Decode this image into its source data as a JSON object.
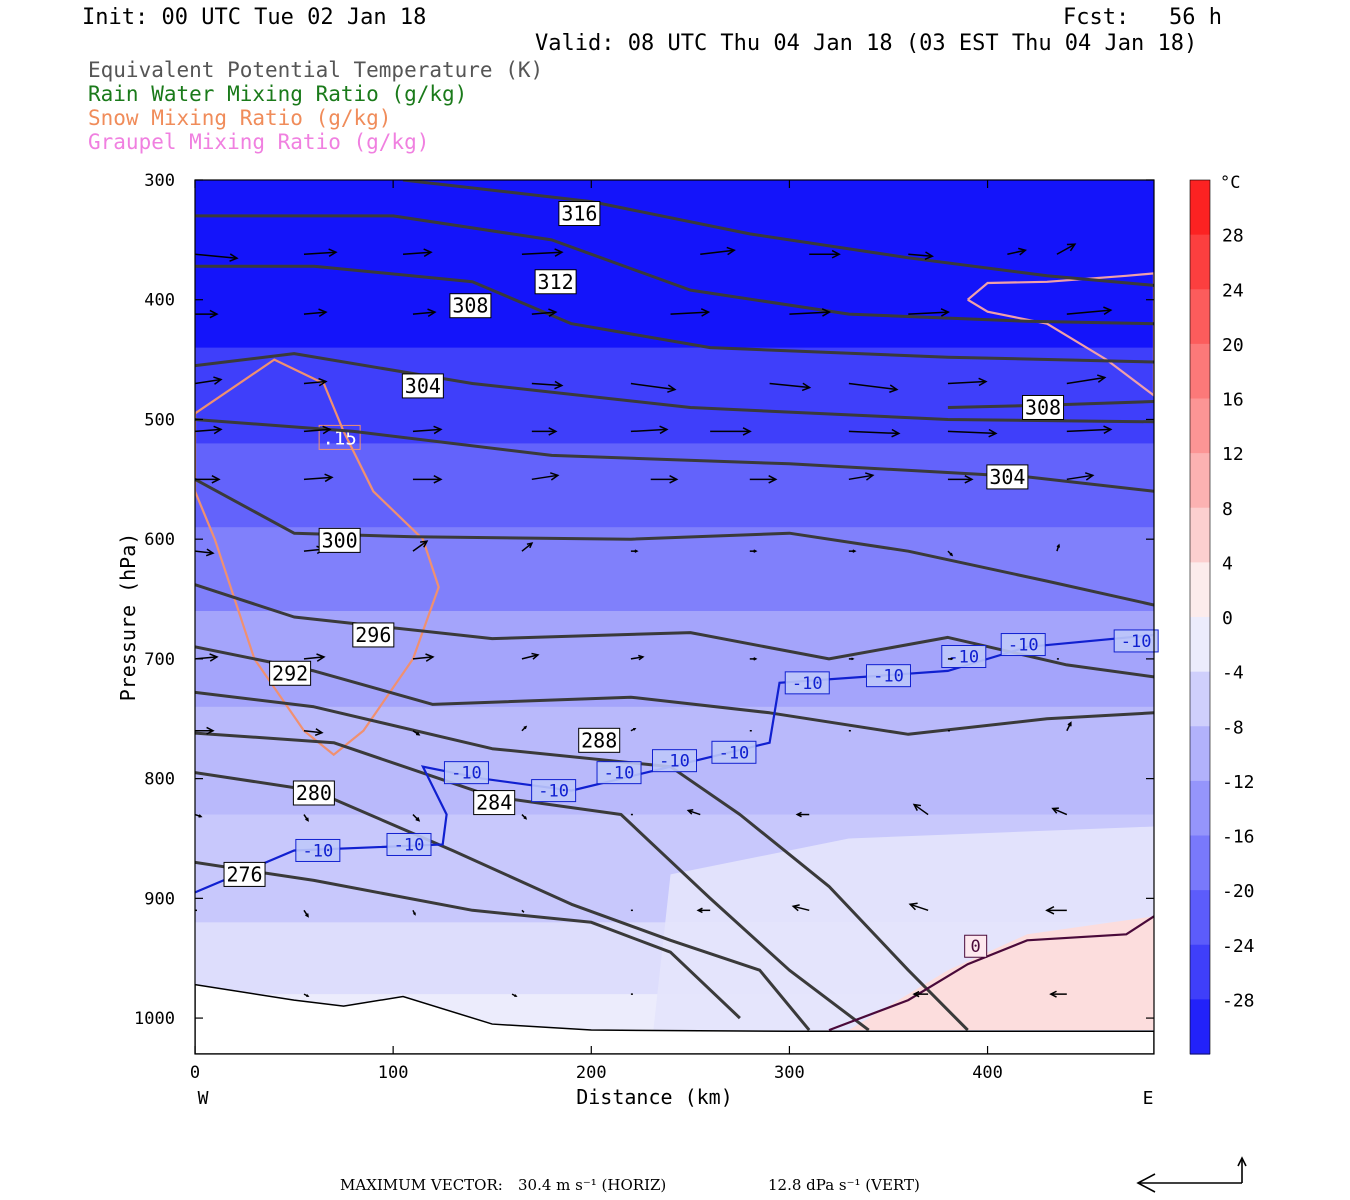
{
  "header": {
    "init": "Init: 00 UTC Tue 02 Jan 18",
    "fcst": "Fcst:   56 h",
    "valid": "Valid: 08 UTC Thu 04 Jan 18 (03 EST Thu 04 Jan 18)"
  },
  "legend": {
    "theta_e": "Equivalent Potential Temperature (K)",
    "rain": "Rain Water Mixing Ratio (g/kg)",
    "snow": "Snow Mixing Ratio (g/kg)",
    "graupel": "Graupel Mixing Ratio (g/kg)"
  },
  "colors": {
    "theta_e": "#555555",
    "rain": "#1a7a1a",
    "snow": "#f08c5a",
    "graupel": "#f080e0",
    "isotherm_cold": "#1020d0",
    "isotherm_zero": "#4a0a3a",
    "snow_contour": "#f09070",
    "snow_contour_upper": "#f0a0a8"
  },
  "footer": {
    "max_vector_label": "MAXIMUM VECTOR:",
    "horiz": "30.4 m s⁻¹ (HORIZ)",
    "vert": "12.8 dPa s⁻¹ (VERT)"
  },
  "chart_data": {
    "type": "heatmap",
    "title": "",
    "xlabel": "Distance (km)",
    "ylabel": "Pressure (hPa)",
    "xlim": [
      0,
      484
    ],
    "ylim": [
      1030,
      300
    ],
    "x_ticks": [
      0,
      100,
      200,
      300,
      400
    ],
    "y_ticks": [
      300,
      400,
      500,
      600,
      700,
      800,
      900,
      1000
    ],
    "x_end_labels": {
      "left": "W",
      "right": "E"
    },
    "colorbar": {
      "unit": "°C",
      "range": [
        -32,
        32
      ],
      "step": 4,
      "tick_labels": [
        28,
        24,
        20,
        16,
        12,
        8,
        4,
        0,
        -4,
        -8,
        -12,
        -16,
        -20,
        -24,
        -28
      ]
    },
    "temperature_field": {
      "description_levels": [
        {
          "p": 300,
          "t": -42
        },
        {
          "p": 400,
          "t": -32
        },
        {
          "p": 480,
          "t": -26
        },
        {
          "p": 560,
          "t": -21
        },
        {
          "p": 620,
          "t": -17
        },
        {
          "p": 700,
          "t": -12
        },
        {
          "p": 780,
          "t": -9
        },
        {
          "p": 880,
          "t": -7
        },
        {
          "p": 960,
          "t": -4
        },
        {
          "p": 1000,
          "t": -2
        }
      ],
      "warm_pocket": {
        "x": [
          330,
          484
        ],
        "p": [
          930,
          1010
        ],
        "t_max": 4
      }
    },
    "theta_e_contours": [
      {
        "value": 316,
        "points": [
          [
            105,
            300
          ],
          [
            200,
            318
          ],
          [
            280,
            345
          ],
          [
            360,
            365
          ],
          [
            430,
            380
          ],
          [
            484,
            388
          ]
        ],
        "label": {
          "x": 194,
          "p": 328
        }
      },
      {
        "value": 312,
        "points": [
          [
            0,
            330
          ],
          [
            100,
            330
          ],
          [
            180,
            350
          ],
          [
            250,
            392
          ],
          [
            330,
            412
          ],
          [
            420,
            418
          ],
          [
            484,
            420
          ]
        ],
        "label": {
          "x": 182,
          "p": 385
        }
      },
      {
        "value": 308,
        "points": [
          [
            0,
            372
          ],
          [
            60,
            372
          ],
          [
            140,
            385
          ],
          [
            190,
            420
          ],
          [
            260,
            440
          ],
          [
            380,
            448
          ],
          [
            484,
            452
          ]
        ],
        "label": {
          "x": 139,
          "p": 405
        }
      },
      {
        "value": 308,
        "points": [
          [
            380,
            490
          ],
          [
            430,
            488
          ],
          [
            484,
            485
          ]
        ],
        "label": {
          "x": 428,
          "p": 490
        }
      },
      {
        "value": 304,
        "points": [
          [
            0,
            455
          ],
          [
            50,
            445
          ],
          [
            140,
            470
          ],
          [
            250,
            490
          ],
          [
            380,
            500
          ],
          [
            484,
            502
          ]
        ],
        "label": {
          "x": 115,
          "p": 472
        }
      },
      {
        "value": 304,
        "points": [
          [
            0,
            500
          ],
          [
            80,
            510
          ],
          [
            180,
            530
          ],
          [
            300,
            537
          ],
          [
            420,
            548
          ],
          [
            484,
            560
          ]
        ],
        "label": {
          "x": 410,
          "p": 548
        }
      },
      {
        "value": 300,
        "points": [
          [
            0,
            550
          ],
          [
            50,
            595
          ],
          [
            110,
            598
          ],
          [
            220,
            600
          ],
          [
            300,
            595
          ],
          [
            360,
            610
          ],
          [
            430,
            635
          ],
          [
            484,
            655
          ]
        ],
        "label": {
          "x": 73,
          "p": 601
        }
      },
      {
        "value": 296,
        "points": [
          [
            0,
            638
          ],
          [
            50,
            665
          ],
          [
            150,
            683
          ],
          [
            250,
            678
          ],
          [
            320,
            700
          ],
          [
            380,
            682
          ],
          [
            440,
            705
          ],
          [
            484,
            715
          ]
        ],
        "label": {
          "x": 90,
          "p": 680
        }
      },
      {
        "value": 292,
        "points": [
          [
            0,
            690
          ],
          [
            60,
            710
          ],
          [
            120,
            738
          ],
          [
            220,
            732
          ],
          [
            290,
            745
          ],
          [
            360,
            763
          ],
          [
            430,
            750
          ],
          [
            484,
            745
          ]
        ],
        "label": {
          "x": 48,
          "p": 712
        }
      },
      {
        "value": 288,
        "points": [
          [
            0,
            728
          ],
          [
            60,
            740
          ],
          [
            150,
            775
          ],
          [
            240,
            790
          ],
          [
            275,
            830
          ],
          [
            320,
            890
          ],
          [
            360,
            960
          ],
          [
            390,
            1010
          ]
        ],
        "label": {
          "x": 204,
          "p": 768
        }
      },
      {
        "value": 284,
        "points": [
          [
            0,
            762
          ],
          [
            70,
            770
          ],
          [
            150,
            815
          ],
          [
            215,
            830
          ],
          [
            260,
            900
          ],
          [
            300,
            960
          ],
          [
            340,
            1010
          ]
        ],
        "label": {
          "x": 151,
          "p": 820
        }
      },
      {
        "value": 280,
        "points": [
          [
            0,
            795
          ],
          [
            60,
            810
          ],
          [
            130,
            860
          ],
          [
            190,
            905
          ],
          [
            240,
            935
          ],
          [
            285,
            960
          ],
          [
            310,
            1010
          ]
        ],
        "label": {
          "x": 60,
          "p": 812
        }
      },
      {
        "value": 276,
        "points": [
          [
            0,
            870
          ],
          [
            60,
            885
          ],
          [
            140,
            910
          ],
          [
            200,
            920
          ],
          [
            240,
            945
          ],
          [
            275,
            1000
          ]
        ],
        "label": {
          "x": 25,
          "p": 880
        }
      }
    ],
    "isotherm_minus10": {
      "value": -10,
      "points": [
        [
          0,
          895
        ],
        [
          50,
          860
        ],
        [
          125,
          855
        ],
        [
          127,
          830
        ],
        [
          115,
          790
        ],
        [
          145,
          800
        ],
        [
          190,
          810
        ],
        [
          240,
          790
        ],
        [
          290,
          770
        ],
        [
          295,
          720
        ],
        [
          380,
          710
        ],
        [
          420,
          690
        ],
        [
          484,
          680
        ]
      ],
      "labels": [
        [
          62,
          860
        ],
        [
          108,
          855
        ],
        [
          137,
          795
        ],
        [
          181,
          810
        ],
        [
          214,
          795
        ],
        [
          242,
          785
        ],
        [
          272,
          778
        ],
        [
          309,
          720
        ],
        [
          350,
          714
        ],
        [
          388,
          698
        ],
        [
          418,
          688
        ],
        [
          475,
          685
        ]
      ]
    },
    "isotherm_zero": {
      "value": 0,
      "points": [
        [
          320,
          1010
        ],
        [
          360,
          985
        ],
        [
          390,
          955
        ],
        [
          420,
          935
        ],
        [
          470,
          930
        ],
        [
          484,
          915
        ]
      ],
      "label": {
        "x": 394,
        "p": 940
      }
    },
    "snow_contours": [
      {
        "value": ".15",
        "points": [
          [
            0,
            495
          ],
          [
            40,
            450
          ],
          [
            65,
            470
          ],
          [
            75,
            510
          ],
          [
            90,
            560
          ],
          [
            115,
            600
          ],
          [
            123,
            640
          ],
          [
            110,
            700
          ],
          [
            85,
            760
          ],
          [
            70,
            780
          ],
          [
            55,
            760
          ],
          [
            30,
            700
          ],
          [
            10,
            600
          ],
          [
            0,
            560
          ]
        ],
        "label": {
          "x": 73,
          "p": 515
        }
      },
      {
        "value": "",
        "points": [
          [
            390,
            400
          ],
          [
            400,
            386
          ],
          [
            430,
            385
          ],
          [
            470,
            380
          ],
          [
            484,
            378
          ],
          [
            484,
            480
          ],
          [
            460,
            450
          ],
          [
            430,
            420
          ],
          [
            400,
            410
          ],
          [
            390,
            400
          ]
        ],
        "label": null
      }
    ],
    "wind_vectors": [
      [
        0,
        362,
        42,
        4
      ],
      [
        55,
        362,
        32,
        -2
      ],
      [
        105,
        362,
        28,
        -2
      ],
      [
        165,
        362,
        40,
        -2
      ],
      [
        255,
        362,
        34,
        -4
      ],
      [
        310,
        362,
        30,
        0
      ],
      [
        360,
        362,
        24,
        2
      ],
      [
        410,
        362,
        18,
        -4
      ],
      [
        435,
        362,
        18,
        -10
      ],
      [
        0,
        412,
        22,
        0
      ],
      [
        55,
        412,
        22,
        -2
      ],
      [
        110,
        412,
        22,
        -2
      ],
      [
        170,
        412,
        24,
        -2
      ],
      [
        240,
        412,
        38,
        -2
      ],
      [
        300,
        412,
        40,
        -2
      ],
      [
        360,
        412,
        40,
        -2
      ],
      [
        440,
        412,
        44,
        -4
      ],
      [
        0,
        470,
        26,
        -4
      ],
      [
        55,
        470,
        22,
        -2
      ],
      [
        110,
        470,
        26,
        -4
      ],
      [
        170,
        470,
        30,
        2
      ],
      [
        220,
        470,
        44,
        6
      ],
      [
        290,
        470,
        40,
        4
      ],
      [
        330,
        470,
        48,
        6
      ],
      [
        380,
        470,
        38,
        -2
      ],
      [
        440,
        470,
        38,
        -6
      ],
      [
        0,
        510,
        26,
        -2
      ],
      [
        55,
        510,
        26,
        -2
      ],
      [
        110,
        510,
        28,
        -2
      ],
      [
        170,
        510,
        24,
        0
      ],
      [
        220,
        510,
        36,
        -2
      ],
      [
        260,
        510,
        40,
        0
      ],
      [
        330,
        510,
        50,
        2
      ],
      [
        380,
        510,
        48,
        2
      ],
      [
        440,
        510,
        44,
        -2
      ],
      [
        0,
        550,
        24,
        0
      ],
      [
        55,
        550,
        28,
        -2
      ],
      [
        110,
        550,
        28,
        0
      ],
      [
        170,
        550,
        26,
        -4
      ],
      [
        230,
        550,
        26,
        0
      ],
      [
        280,
        550,
        26,
        0
      ],
      [
        330,
        550,
        24,
        -4
      ],
      [
        380,
        550,
        24,
        0
      ],
      [
        440,
        550,
        26,
        -4
      ],
      [
        0,
        610,
        18,
        2
      ],
      [
        55,
        610,
        20,
        -2
      ],
      [
        110,
        610,
        14,
        -10
      ],
      [
        165,
        610,
        10,
        -8
      ],
      [
        220,
        610,
        6,
        0
      ],
      [
        280,
        610,
        6,
        0
      ],
      [
        330,
        610,
        6,
        0
      ],
      [
        380,
        610,
        4,
        4
      ],
      [
        435,
        610,
        2,
        -6
      ],
      [
        0,
        700,
        22,
        -2
      ],
      [
        55,
        700,
        20,
        -2
      ],
      [
        110,
        700,
        20,
        -2
      ],
      [
        165,
        700,
        16,
        -4
      ],
      [
        220,
        700,
        12,
        -2
      ],
      [
        280,
        700,
        6,
        0
      ],
      [
        330,
        700,
        4,
        0
      ],
      [
        380,
        700,
        4,
        0
      ],
      [
        435,
        700,
        2,
        0
      ],
      [
        0,
        760,
        18,
        0
      ],
      [
        55,
        760,
        18,
        2
      ],
      [
        110,
        760,
        6,
        4
      ],
      [
        165,
        760,
        4,
        -4
      ],
      [
        220,
        760,
        4,
        -2
      ],
      [
        280,
        760,
        2,
        0
      ],
      [
        330,
        760,
        2,
        0
      ],
      [
        380,
        760,
        2,
        0
      ],
      [
        440,
        760,
        4,
        -8
      ],
      [
        0,
        830,
        6,
        2
      ],
      [
        55,
        830,
        4,
        6
      ],
      [
        110,
        830,
        6,
        6
      ],
      [
        165,
        830,
        4,
        4
      ],
      [
        220,
        830,
        2,
        0
      ],
      [
        255,
        830,
        -12,
        -4
      ],
      [
        310,
        830,
        -12,
        0
      ],
      [
        370,
        830,
        -14,
        -10
      ],
      [
        440,
        830,
        -14,
        -6
      ],
      [
        0,
        910,
        2,
        0
      ],
      [
        55,
        910,
        4,
        6
      ],
      [
        110,
        910,
        2,
        4
      ],
      [
        165,
        910,
        2,
        2
      ],
      [
        220,
        910,
        2,
        0
      ],
      [
        260,
        910,
        -12,
        0
      ],
      [
        310,
        910,
        -16,
        -4
      ],
      [
        370,
        910,
        -18,
        -6
      ],
      [
        440,
        910,
        -20,
        0
      ],
      [
        55,
        980,
        4,
        2
      ],
      [
        160,
        980,
        4,
        2
      ],
      [
        220,
        980,
        2,
        0
      ],
      [
        370,
        980,
        -14,
        0
      ],
      [
        440,
        980,
        -16,
        0
      ]
    ]
  }
}
